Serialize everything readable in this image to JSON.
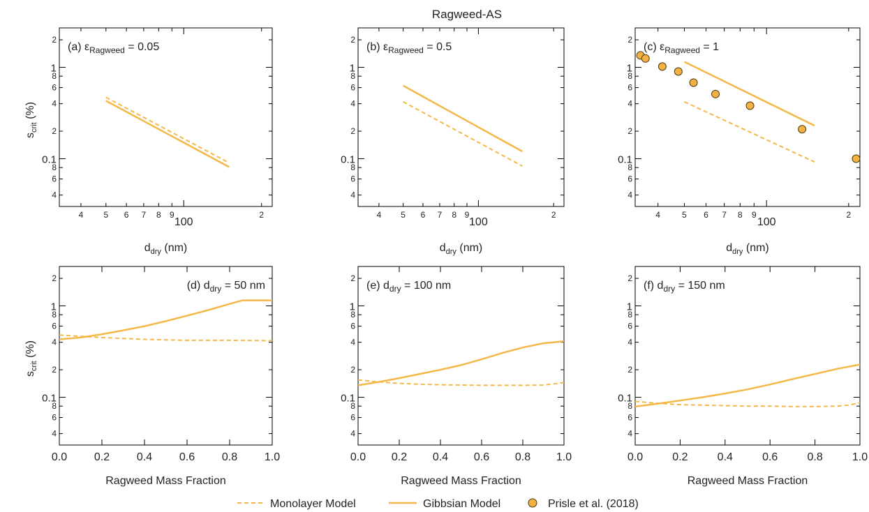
{
  "figure_title": "Ragweed-AS",
  "colors": {
    "line": "#f4b849",
    "marker_fill": "#f2b141",
    "marker_edge": "#4a3a10",
    "frame": "#000000"
  },
  "legend": {
    "monolayer": "Monolayer Model",
    "gibbsian": "Gibbsian Model",
    "data": "Prisle et al. (2018)"
  },
  "axes_text": {
    "ylabel_main": "s",
    "ylabel_sub": "crit",
    "ylabel_unit": " (%)",
    "xlabel_top_main": "d",
    "xlabel_top_sub": "dry",
    "xlabel_top_unit": " (nm)",
    "xlabel_bottom": "Ragweed Mass Fraction"
  },
  "chart_data": [
    {
      "id": "a",
      "type": "line",
      "label": "(a) ε",
      "label_sub": "Ragweed",
      "label_tail": " = 0.05",
      "xscale": "log",
      "yscale": "log",
      "xlim": [
        33,
        220
      ],
      "ylim": [
        0.03,
        2.7
      ],
      "xticks": [
        "4",
        "5",
        "6",
        "7",
        "8",
        "9",
        "100",
        "2"
      ],
      "series": [
        {
          "name": "Monolayer Model",
          "style": "dashed",
          "x": [
            50,
            150
          ],
          "y": [
            0.47,
            0.09
          ]
        },
        {
          "name": "Gibbsian Model",
          "style": "solid",
          "x": [
            50,
            150
          ],
          "y": [
            0.43,
            0.081
          ]
        }
      ]
    },
    {
      "id": "b",
      "type": "line",
      "label": "(b) ε",
      "label_sub": "Ragweed",
      "label_tail": " = 0.5",
      "xscale": "log",
      "yscale": "log",
      "xlim": [
        33,
        220
      ],
      "ylim": [
        0.03,
        2.7
      ],
      "xticks": [
        "4",
        "5",
        "6",
        "7",
        "8",
        "9",
        "100",
        "2"
      ],
      "series": [
        {
          "name": "Monolayer Model",
          "style": "dashed",
          "x": [
            50,
            150
          ],
          "y": [
            0.42,
            0.083
          ]
        },
        {
          "name": "Gibbsian Model",
          "style": "solid",
          "x": [
            50,
            150
          ],
          "y": [
            0.63,
            0.12
          ]
        }
      ]
    },
    {
      "id": "c",
      "type": "line",
      "label": "(c) ε",
      "label_sub": "Ragweed",
      "label_tail": " = 1",
      "xscale": "log",
      "yscale": "log",
      "xlim": [
        33,
        220
      ],
      "ylim": [
        0.03,
        2.7
      ],
      "xticks": [
        "4",
        "5",
        "6",
        "7",
        "8",
        "9",
        "100",
        "2"
      ],
      "series": [
        {
          "name": "Monolayer Model",
          "style": "dashed",
          "x": [
            50,
            150
          ],
          "y": [
            0.42,
            0.092
          ]
        },
        {
          "name": "Gibbsian Model",
          "style": "solid",
          "x": [
            50,
            150
          ],
          "y": [
            1.15,
            0.23
          ]
        },
        {
          "name": "Prisle et al. (2018)",
          "style": "markers",
          "x": [
            34.5,
            36,
            41.5,
            47.5,
            54,
            65,
            87,
            135,
            213
          ],
          "y": [
            1.35,
            1.25,
            1.02,
            0.9,
            0.68,
            0.51,
            0.38,
            0.21,
            0.1
          ]
        }
      ]
    },
    {
      "id": "d",
      "type": "line",
      "label": "(d) d",
      "label_sub": "dry",
      "label_tail": " = 50 nm",
      "xscale": "linear",
      "yscale": "log",
      "xlim": [
        0,
        1
      ],
      "ylim": [
        0.03,
        2.7
      ],
      "xticks": [
        "0.0",
        "0.2",
        "0.4",
        "0.6",
        "0.8",
        "1.0"
      ],
      "series": [
        {
          "name": "Monolayer Model",
          "style": "dashed",
          "x": [
            0,
            0.1,
            0.2,
            0.3,
            0.4,
            0.5,
            0.6,
            0.7,
            0.8,
            0.9,
            1.0
          ],
          "y": [
            0.48,
            0.465,
            0.45,
            0.44,
            0.43,
            0.425,
            0.42,
            0.42,
            0.42,
            0.418,
            0.415
          ]
        },
        {
          "name": "Gibbsian Model",
          "style": "solid",
          "x": [
            0,
            0.1,
            0.2,
            0.3,
            0.4,
            0.5,
            0.6,
            0.7,
            0.8,
            0.86,
            0.9,
            1.0
          ],
          "y": [
            0.43,
            0.45,
            0.49,
            0.54,
            0.6,
            0.68,
            0.78,
            0.9,
            1.05,
            1.15,
            1.15,
            1.15
          ]
        }
      ]
    },
    {
      "id": "e",
      "type": "line",
      "label": "(e) d",
      "label_sub": "dry",
      "label_tail": " = 100 nm",
      "xscale": "linear",
      "yscale": "log",
      "xlim": [
        0,
        1
      ],
      "ylim": [
        0.03,
        2.7
      ],
      "xticks": [
        "0.0",
        "0.2",
        "0.4",
        "0.6",
        "0.8",
        "1.0"
      ],
      "series": [
        {
          "name": "Monolayer Model",
          "style": "dashed",
          "x": [
            0,
            0.1,
            0.2,
            0.3,
            0.4,
            0.5,
            0.6,
            0.7,
            0.8,
            0.9,
            0.95,
            1.0
          ],
          "y": [
            0.155,
            0.147,
            0.142,
            0.139,
            0.137,
            0.136,
            0.135,
            0.135,
            0.135,
            0.136,
            0.14,
            0.145
          ]
        },
        {
          "name": "Gibbsian Model",
          "style": "solid",
          "x": [
            0,
            0.1,
            0.2,
            0.3,
            0.4,
            0.5,
            0.6,
            0.7,
            0.8,
            0.9,
            1.0
          ],
          "y": [
            0.135,
            0.147,
            0.162,
            0.18,
            0.2,
            0.225,
            0.26,
            0.305,
            0.35,
            0.39,
            0.41
          ]
        }
      ]
    },
    {
      "id": "f",
      "type": "line",
      "label": "(f) d",
      "label_sub": "dry",
      "label_tail": " = 150 nm",
      "xscale": "linear",
      "yscale": "log",
      "xlim": [
        0,
        1
      ],
      "ylim": [
        0.03,
        2.7
      ],
      "xticks": [
        "0.0",
        "0.2",
        "0.4",
        "0.6",
        "0.8",
        "1.0"
      ],
      "series": [
        {
          "name": "Monolayer Model",
          "style": "dashed",
          "x": [
            0,
            0.1,
            0.2,
            0.3,
            0.4,
            0.5,
            0.6,
            0.7,
            0.8,
            0.9,
            0.95,
            1.0
          ],
          "y": [
            0.09,
            0.086,
            0.083,
            0.082,
            0.081,
            0.08,
            0.08,
            0.079,
            0.079,
            0.08,
            0.082,
            0.087
          ]
        },
        {
          "name": "Gibbsian Model",
          "style": "solid",
          "x": [
            0,
            0.1,
            0.2,
            0.3,
            0.4,
            0.5,
            0.6,
            0.7,
            0.8,
            0.9,
            1.0
          ],
          "y": [
            0.079,
            0.085,
            0.092,
            0.1,
            0.11,
            0.122,
            0.138,
            0.158,
            0.18,
            0.205,
            0.228
          ]
        }
      ]
    }
  ]
}
